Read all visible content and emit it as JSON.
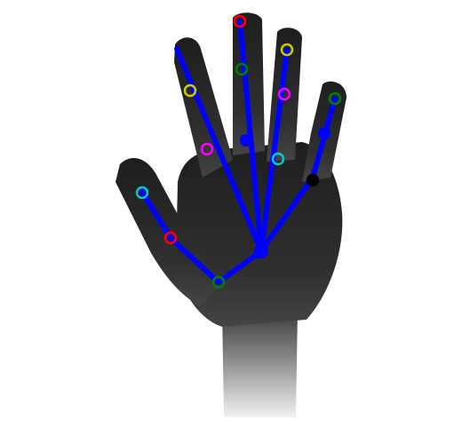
{
  "image": {
    "subject": "hand-pose-estimation",
    "background_color": "#ffffff",
    "hand_color": "#2b2b2b",
    "skeleton_color": "#0000ff",
    "bones": [
      [
        "wrist",
        "thumb_base"
      ],
      [
        "thumb_base",
        "thumb_mid"
      ],
      [
        "thumb_mid",
        "thumb_tip"
      ],
      [
        "palm_center",
        "index_tip"
      ],
      [
        "palm_center",
        "middle_tip"
      ],
      [
        "palm_center",
        "ring_tip"
      ],
      [
        "palm_center",
        "pinky_joint"
      ],
      [
        "pinky_joint",
        "pinky_tip"
      ],
      [
        "palm_center",
        "wrist"
      ]
    ],
    "skeleton_joints": [
      "palm_center",
      "middle_mid",
      "pinky_joint",
      "pinky_knuckle"
    ],
    "keypoint_markers": [
      {
        "id": "middle_tip",
        "color": "#ff0000"
      },
      {
        "id": "middle_mid_marker",
        "color": "#008000"
      },
      {
        "id": "ring_tip",
        "color": "#cccc00"
      },
      {
        "id": "ring_mid",
        "color": "#ff00ff"
      },
      {
        "id": "index_mid",
        "color": "#cccc00"
      },
      {
        "id": "index_low",
        "color": "#ff00ff"
      },
      {
        "id": "ring_low",
        "color": "#00cccc"
      },
      {
        "id": "pinky_tip",
        "color": "#008000"
      },
      {
        "id": "pinky_low",
        "color": "#000000"
      },
      {
        "id": "thumb_tip",
        "color": "#00cccc"
      },
      {
        "id": "thumb_mid",
        "color": "#ff0000"
      },
      {
        "id": "thumb_base",
        "color": "#008000"
      }
    ]
  }
}
